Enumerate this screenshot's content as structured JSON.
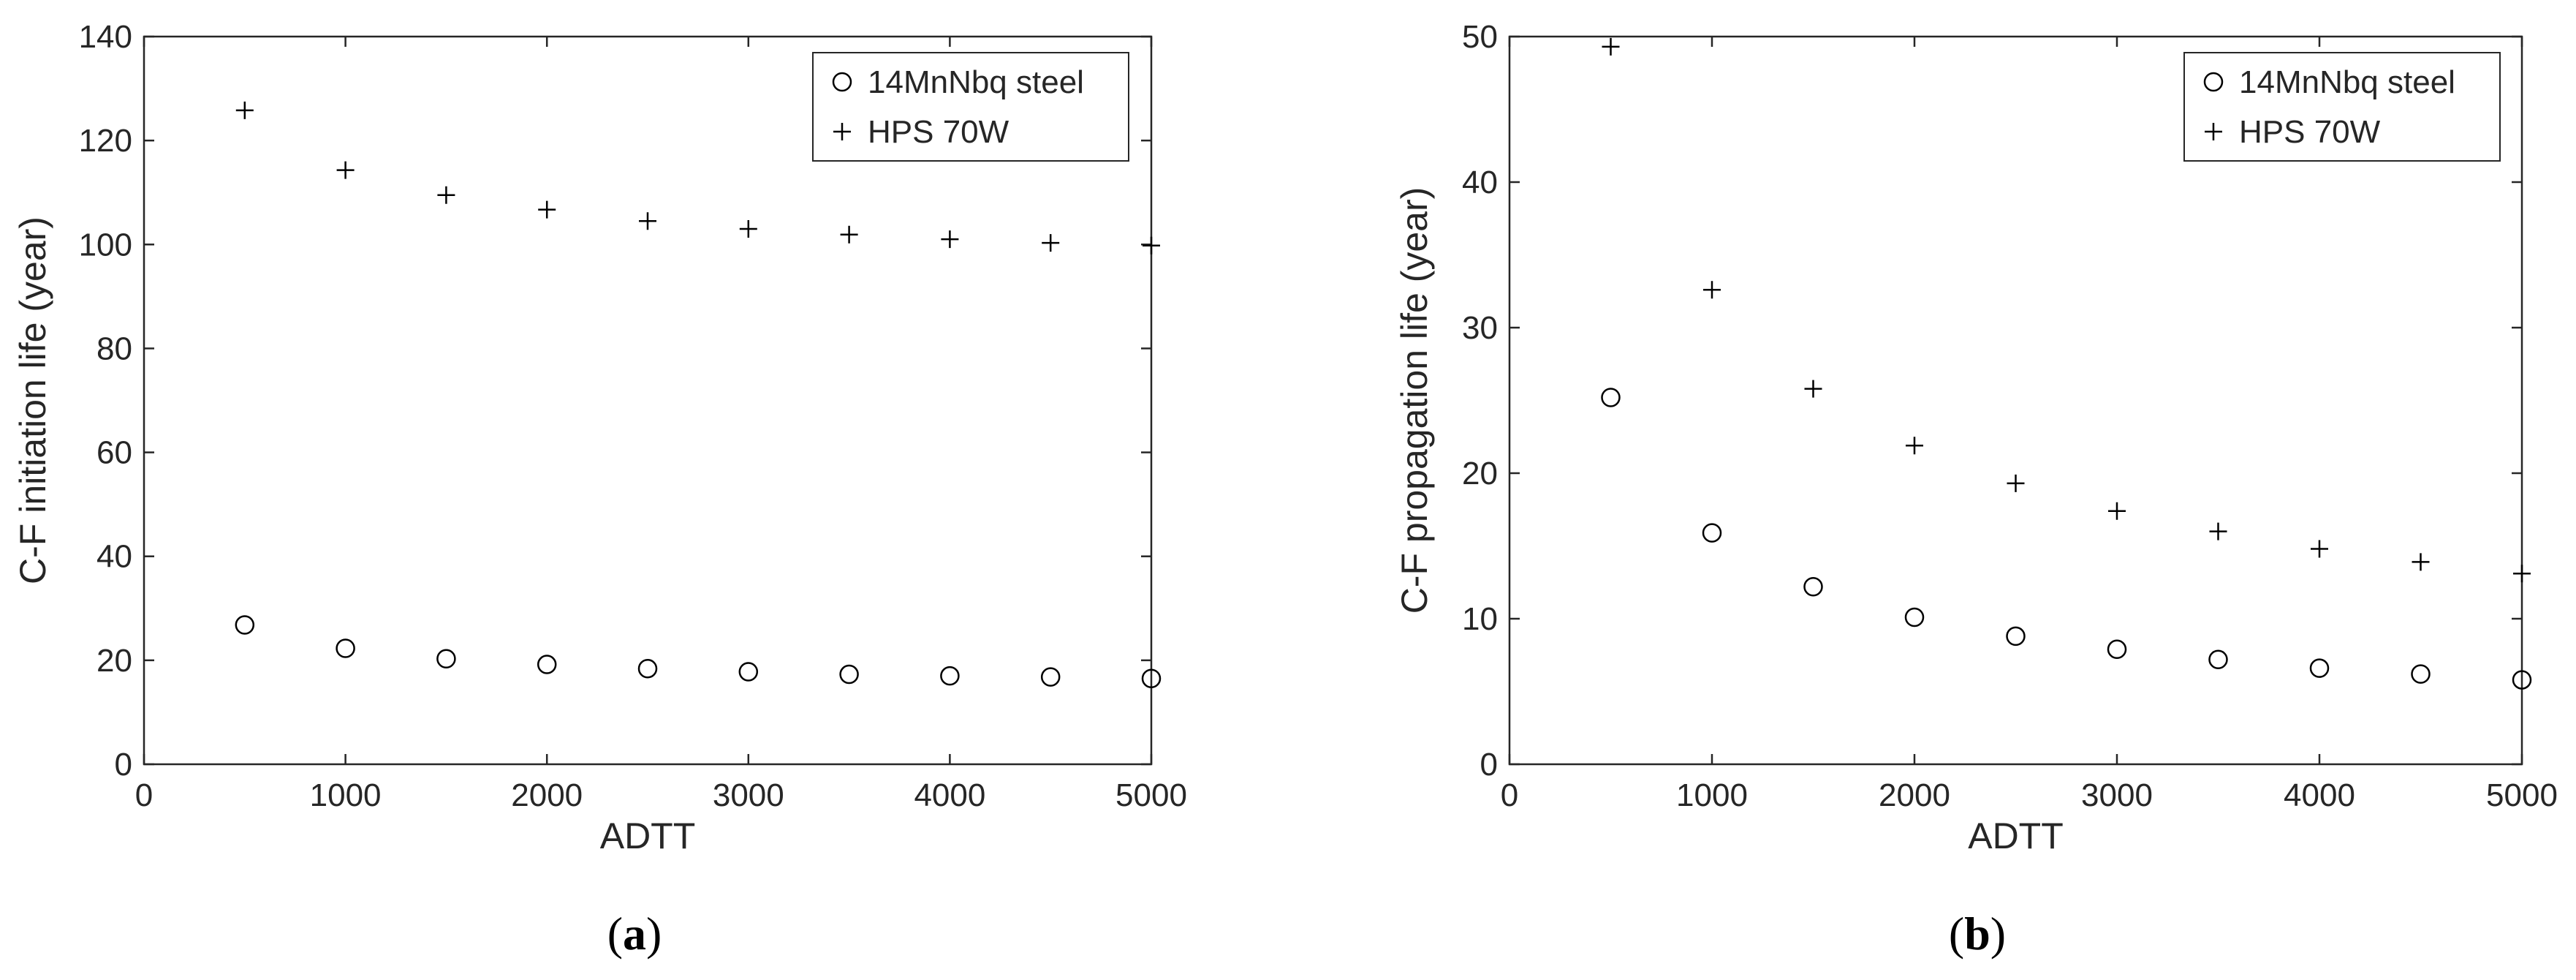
{
  "chart_data": [
    {
      "type": "scatter",
      "panel_label": "(a)",
      "xlabel": "ADTT",
      "ylabel": "C-F initiation life (year)",
      "xlim": [
        0,
        5000
      ],
      "ylim": [
        0,
        140
      ],
      "xticks": [
        0,
        1000,
        2000,
        3000,
        4000,
        5000
      ],
      "yticks": [
        0,
        20,
        40,
        60,
        80,
        100,
        120,
        140
      ],
      "legend_position": "top-right",
      "grid": false,
      "x": [
        500,
        1000,
        1500,
        2000,
        2500,
        3000,
        3500,
        4000,
        4500,
        5000
      ],
      "series": [
        {
          "name": "14MnNbq steel",
          "marker": "circle",
          "values": [
            26.8,
            22.3,
            20.3,
            19.2,
            18.4,
            17.8,
            17.3,
            17.0,
            16.8,
            16.5
          ]
        },
        {
          "name": "HPS 70W",
          "marker": "plus",
          "values": [
            125.8,
            114.3,
            109.5,
            106.7,
            104.5,
            103.0,
            101.9,
            101.0,
            100.3,
            99.8
          ]
        }
      ]
    },
    {
      "type": "scatter",
      "panel_label": "(b)",
      "xlabel": "ADTT",
      "ylabel": "C-F propagation life (year)",
      "xlim": [
        0,
        5000
      ],
      "ylim": [
        0,
        50
      ],
      "xticks": [
        0,
        1000,
        2000,
        3000,
        4000,
        5000
      ],
      "yticks": [
        0,
        10,
        20,
        30,
        40,
        50
      ],
      "legend_position": "top-right",
      "grid": false,
      "x": [
        500,
        1000,
        1500,
        2000,
        2500,
        3000,
        3500,
        4000,
        4500,
        5000
      ],
      "series": [
        {
          "name": "14MnNbq steel",
          "marker": "circle",
          "values": [
            25.2,
            15.9,
            12.2,
            10.1,
            8.8,
            7.9,
            7.2,
            6.6,
            6.2,
            5.8
          ]
        },
        {
          "name": "HPS 70W",
          "marker": "plus",
          "values": [
            49.3,
            32.6,
            25.8,
            21.9,
            19.3,
            17.4,
            16.0,
            14.8,
            13.9,
            13.1
          ]
        }
      ]
    }
  ]
}
